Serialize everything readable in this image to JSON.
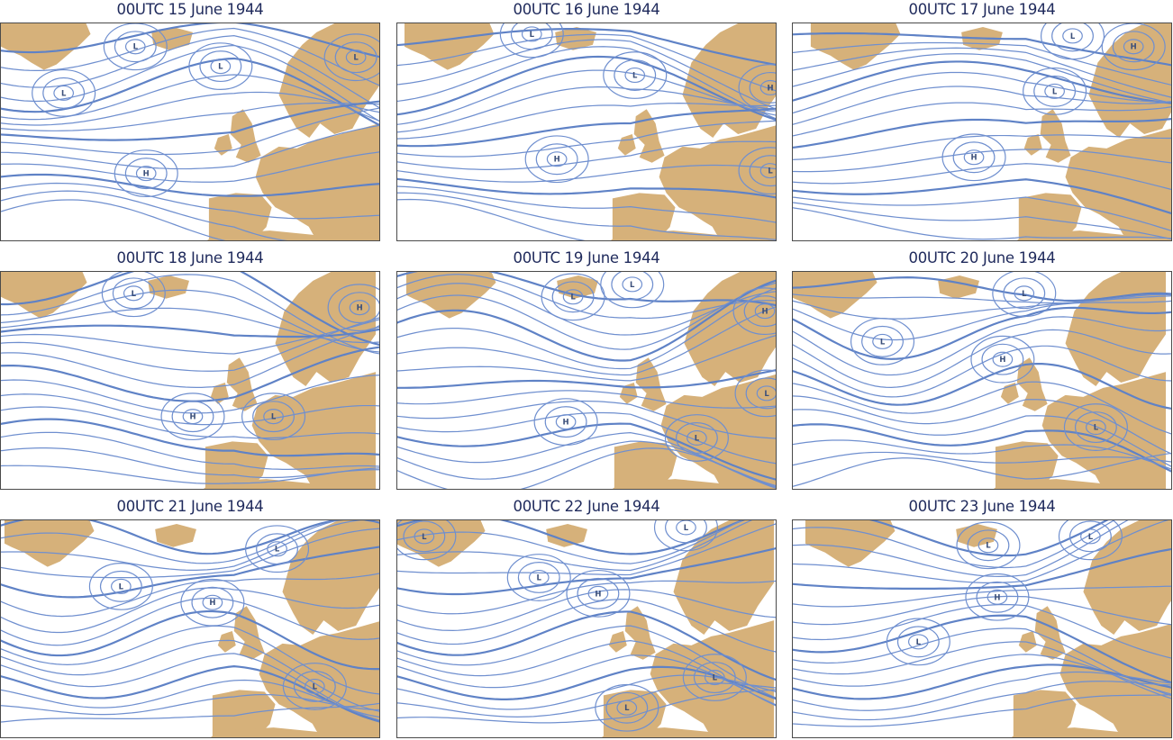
{
  "figure": {
    "colors": {
      "land": "#d6b17a",
      "isobar": "#6f8fcf",
      "title": "#1f2a5c",
      "label": "#3b4f7a"
    },
    "panels": [
      {
        "title": "00UTC 15 June 1944",
        "centers": [
          "L",
          "L",
          "L",
          "L",
          "H"
        ]
      },
      {
        "title": "00UTC 16 June 1944",
        "centers": [
          "L",
          "L",
          "H",
          "H",
          "L"
        ]
      },
      {
        "title": "00UTC 17 June 1944",
        "centers": [
          "L",
          "H",
          "L",
          "H"
        ]
      },
      {
        "title": "00UTC 18 June 1944",
        "centers": [
          "L",
          "H",
          "H",
          "L"
        ]
      },
      {
        "title": "00UTC 19 June 1944",
        "centers": [
          "L",
          "L",
          "H",
          "H",
          "L",
          "L"
        ]
      },
      {
        "title": "00UTC 20 June 1944",
        "centers": [
          "L",
          "L",
          "H",
          "L"
        ]
      },
      {
        "title": "00UTC 21 June 1944",
        "centers": [
          "L",
          "L",
          "H",
          "L"
        ]
      },
      {
        "title": "00UTC 22 June 1944",
        "centers": [
          "L",
          "L",
          "L",
          "H",
          "L",
          "L"
        ]
      },
      {
        "title": "00UTC 23 June 1944",
        "centers": [
          "L",
          "L",
          "H",
          "L"
        ]
      }
    ]
  }
}
